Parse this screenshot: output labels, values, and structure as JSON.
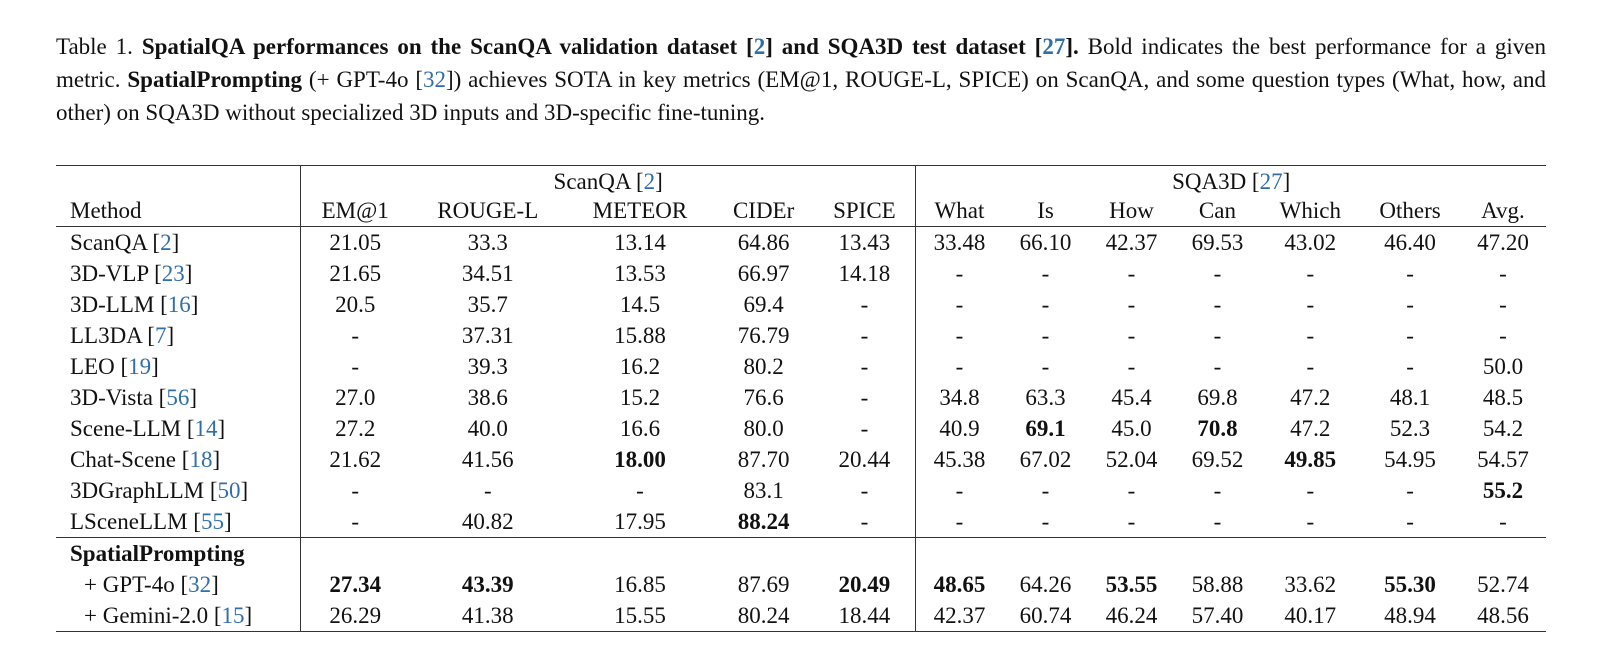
{
  "caption": {
    "label": "Table 1.",
    "bold_pre": "SpatialQA performances on the ScanQA validation dataset [",
    "bold_ref1": "2",
    "bold_mid": "] and SQA3D test dataset [",
    "bold_ref2": "27",
    "bold_post": "].",
    "text1": " Bold indicates the best performance for a given metric. ",
    "method_name": "SpatialPrompting",
    "text2_pre": " (+ GPT-4o [",
    "text2_ref": "32",
    "text2_post": "]) achieves SOTA in key metrics (EM@1, ROUGE-L, SPICE) on ScanQA, and some question types (What, how, and other) on SQA3D without specialized 3D inputs and 3D-specific fine-tuning."
  },
  "table": {
    "groups": {
      "scanqa_label": "ScanQA [",
      "scanqa_ref": "2",
      "sqa3d_label": "SQA3D [",
      "sqa3d_ref": "27",
      "close": "]"
    },
    "columns": [
      "Method",
      "EM@1",
      "ROUGE-L",
      "METEOR",
      "CIDEr",
      "SPICE",
      "What",
      "Is",
      "How",
      "Can",
      "Which",
      "Others",
      "Avg."
    ],
    "rows": [
      {
        "name": "ScanQA [",
        "ref": "2",
        "values": [
          "21.05",
          "33.3",
          "13.14",
          "64.86",
          "13.43",
          "33.48",
          "66.10",
          "42.37",
          "69.53",
          "43.02",
          "46.40",
          "47.20"
        ],
        "bold": []
      },
      {
        "name": "3D-VLP [",
        "ref": "23",
        "values": [
          "21.65",
          "34.51",
          "13.53",
          "66.97",
          "14.18",
          "-",
          "-",
          "-",
          "-",
          "-",
          "-",
          "-"
        ],
        "bold": []
      },
      {
        "name": "3D-LLM [",
        "ref": "16",
        "values": [
          "20.5",
          "35.7",
          "14.5",
          "69.4",
          "-",
          "-",
          "-",
          "-",
          "-",
          "-",
          "-",
          "-"
        ],
        "bold": []
      },
      {
        "name": "LL3DA [",
        "ref": "7",
        "values": [
          "-",
          "37.31",
          "15.88",
          "76.79",
          "-",
          "-",
          "-",
          "-",
          "-",
          "-",
          "-",
          "-"
        ],
        "bold": []
      },
      {
        "name": "LEO [",
        "ref": "19",
        "values": [
          "-",
          "39.3",
          "16.2",
          "80.2",
          "-",
          "-",
          "-",
          "-",
          "-",
          "-",
          "-",
          "50.0"
        ],
        "bold": []
      },
      {
        "name": "3D-Vista [",
        "ref": "56",
        "values": [
          "27.0",
          "38.6",
          "15.2",
          "76.6",
          "-",
          "34.8",
          "63.3",
          "45.4",
          "69.8",
          "47.2",
          "48.1",
          "48.5"
        ],
        "bold": []
      },
      {
        "name": "Scene-LLM [",
        "ref": "14",
        "values": [
          "27.2",
          "40.0",
          "16.6",
          "80.0",
          "-",
          "40.9",
          "69.1",
          "45.0",
          "70.8",
          "47.2",
          "52.3",
          "54.2"
        ],
        "bold": [
          6,
          8
        ]
      },
      {
        "name": "Chat-Scene [",
        "ref": "18",
        "values": [
          "21.62",
          "41.56",
          "18.00",
          "87.70",
          "20.44",
          "45.38",
          "67.02",
          "52.04",
          "69.52",
          "49.85",
          "54.95",
          "54.57"
        ],
        "bold": [
          2,
          9
        ]
      },
      {
        "name": "3DGraphLLM [",
        "ref": "50",
        "values": [
          "-",
          "-",
          "-",
          "83.1",
          "-",
          "-",
          "-",
          "-",
          "-",
          "-",
          "-",
          "55.2"
        ],
        "bold": [
          11
        ]
      },
      {
        "name": "LSceneLLM [",
        "ref": "55",
        "values": [
          "-",
          "40.82",
          "17.95",
          "88.24",
          "-",
          "-",
          "-",
          "-",
          "-",
          "-",
          "-",
          "-"
        ],
        "bold": [
          3
        ]
      }
    ],
    "ours_label": "SpatialPrompting",
    "ours_rows": [
      {
        "name": "+ GPT-4o [",
        "ref": "32",
        "values": [
          "27.34",
          "43.39",
          "16.85",
          "87.69",
          "20.49",
          "48.65",
          "64.26",
          "53.55",
          "58.88",
          "33.62",
          "55.30",
          "52.74"
        ],
        "bold": [
          0,
          1,
          4,
          5,
          7,
          10
        ]
      },
      {
        "name": "+ Gemini-2.0 [",
        "ref": "15",
        "values": [
          "26.29",
          "41.38",
          "15.55",
          "80.24",
          "18.44",
          "42.37",
          "60.74",
          "46.24",
          "57.40",
          "40.17",
          "48.94",
          "48.56"
        ],
        "bold": []
      }
    ]
  }
}
